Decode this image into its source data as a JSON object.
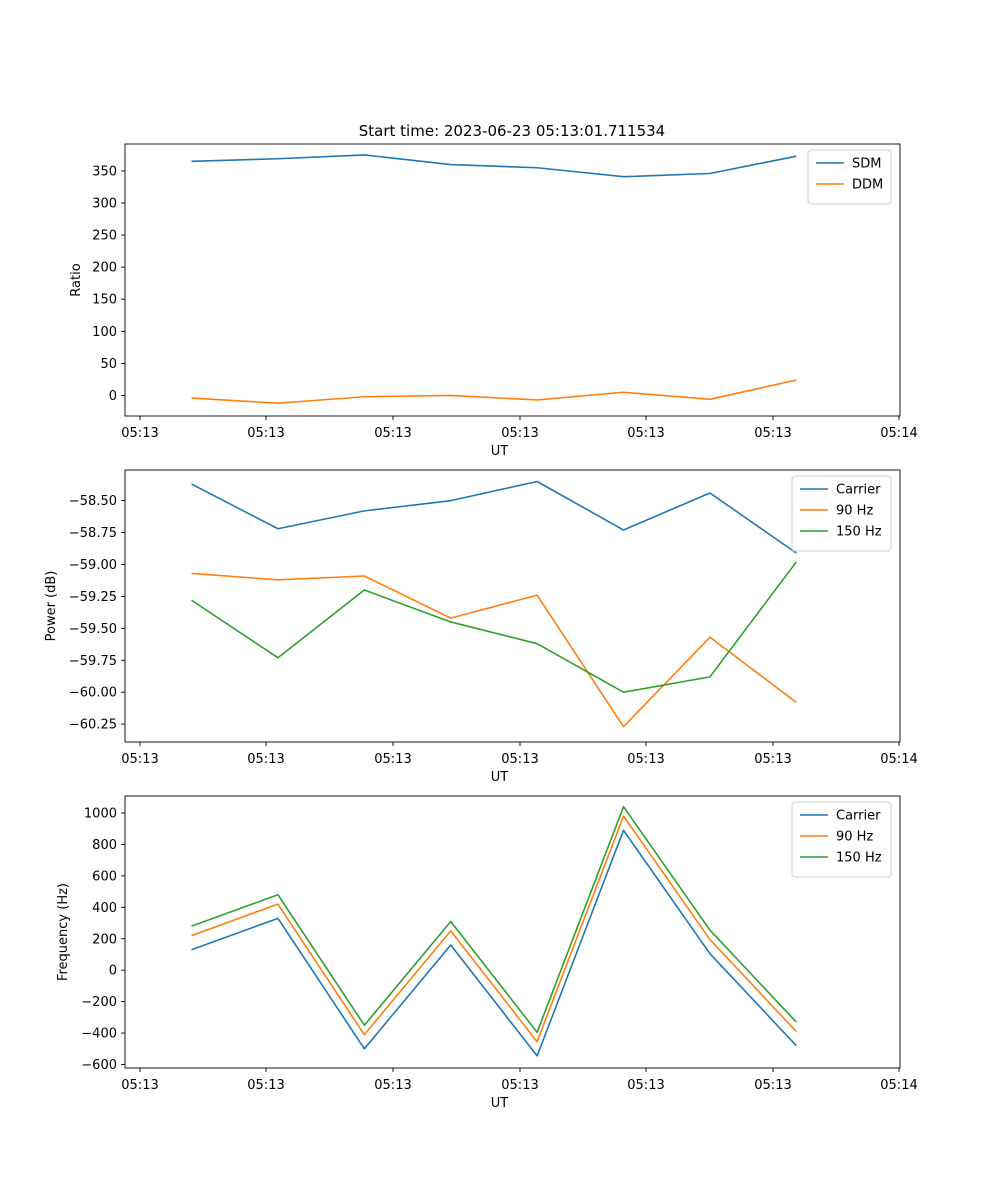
{
  "figure": {
    "title": "Start time: 2023-06-23 05:13:01.711534"
  },
  "chart_data": [
    {
      "type": "line",
      "xlabel": "UT",
      "ylabel": "Ratio",
      "xticks": [
        "05:13",
        "05:13",
        "05:13",
        "05:13",
        "05:13",
        "05:13",
        "05:14"
      ],
      "yticks": [
        0,
        50,
        100,
        150,
        200,
        250,
        300,
        350
      ],
      "ylim": [
        -32,
        392
      ],
      "xlim": [
        -0.27,
        8.7
      ],
      "legend": "top-right",
      "grid": false,
      "x": [
        0.5,
        1.5,
        2.5,
        3.5,
        4.5,
        5.5,
        6.5,
        7.5
      ],
      "series": [
        {
          "name": "SDM",
          "color": "#1f77b4",
          "values": [
            365,
            369,
            375,
            360,
            355,
            341,
            346,
            373
          ]
        },
        {
          "name": "DDM",
          "color": "#ff7f0e",
          "values": [
            -4,
            -12,
            -2,
            0,
            -7,
            5,
            -6,
            24
          ]
        }
      ]
    },
    {
      "type": "line",
      "xlabel": "UT",
      "ylabel": "Power (dB)",
      "xticks": [
        "05:13",
        "05:13",
        "05:13",
        "05:13",
        "05:13",
        "05:13",
        "05:14"
      ],
      "yticks": [
        -58.5,
        -58.75,
        -59.0,
        -59.25,
        -59.5,
        -59.75,
        -60.0,
        -60.25
      ],
      "ytick_labels": [
        "−58.50",
        "−58.75",
        "−59.00",
        "−59.25",
        "−59.50",
        "−59.75",
        "−60.00",
        "−60.25"
      ],
      "ylim": [
        -60.39,
        -58.26
      ],
      "xlim": [
        -0.27,
        8.7
      ],
      "legend": "top-right",
      "grid": false,
      "x": [
        0.5,
        1.5,
        2.5,
        3.5,
        4.5,
        5.5,
        6.5,
        7.5
      ],
      "series": [
        {
          "name": "Carrier",
          "color": "#1f77b4",
          "values": [
            -58.37,
            -58.72,
            -58.58,
            -58.5,
            -58.35,
            -58.73,
            -58.44,
            -58.91
          ]
        },
        {
          "name": "90 Hz",
          "color": "#ff7f0e",
          "values": [
            -59.07,
            -59.12,
            -59.09,
            -59.42,
            -59.24,
            -60.27,
            -59.57,
            -60.08
          ]
        },
        {
          "name": "150 Hz",
          "color": "#2ca02c",
          "values": [
            -59.28,
            -59.73,
            -59.2,
            -59.45,
            -59.62,
            -60.0,
            -59.88,
            -58.98
          ]
        }
      ]
    },
    {
      "type": "line",
      "xlabel": "UT",
      "ylabel": "Frequency (Hz)",
      "xticks": [
        "05:13",
        "05:13",
        "05:13",
        "05:13",
        "05:13",
        "05:13",
        "05:14"
      ],
      "yticks": [
        -600,
        -400,
        -200,
        0,
        200,
        400,
        600,
        800,
        1000
      ],
      "ylim": [
        -622,
        1108
      ],
      "xlim": [
        -0.27,
        8.7
      ],
      "legend": "top-right",
      "grid": false,
      "x": [
        0.5,
        1.5,
        2.5,
        3.5,
        4.5,
        5.5,
        6.5,
        7.5
      ],
      "series": [
        {
          "name": "Carrier",
          "color": "#1f77b4",
          "values": [
            130,
            330,
            -500,
            160,
            -545,
            890,
            105,
            -480
          ]
        },
        {
          "name": "90 Hz",
          "color": "#ff7f0e",
          "values": [
            220,
            420,
            -410,
            250,
            -455,
            980,
            195,
            -390
          ]
        },
        {
          "name": "150 Hz",
          "color": "#2ca02c",
          "values": [
            280,
            480,
            -350,
            310,
            -395,
            1040,
            255,
            -330
          ]
        }
      ]
    }
  ]
}
